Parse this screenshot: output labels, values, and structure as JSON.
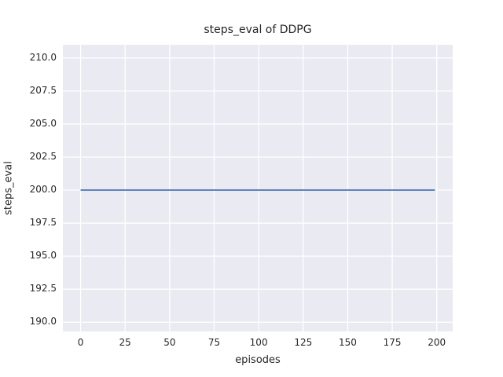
{
  "chart_data": {
    "type": "line",
    "title": "steps_eval of DDPG",
    "xlabel": "episodes",
    "ylabel": "steps_eval",
    "x_ticks": [
      0,
      25,
      50,
      75,
      100,
      125,
      150,
      175,
      200
    ],
    "x_tick_labels": [
      "0",
      "25",
      "50",
      "75",
      "100",
      "125",
      "150",
      "175",
      "200"
    ],
    "y_ticks": [
      190.0,
      192.5,
      195.0,
      197.5,
      200.0,
      202.5,
      205.0,
      207.5,
      210.0
    ],
    "y_tick_labels": [
      "190.0",
      "192.5",
      "195.0",
      "197.5",
      "200.0",
      "202.5",
      "205.0",
      "207.5",
      "210.0"
    ],
    "xlim": [
      -9.95,
      208.95
    ],
    "ylim": [
      189.3,
      211.0
    ],
    "grid": true,
    "legend": false,
    "series": [
      {
        "name": "DDPG",
        "color": "#4C72B0",
        "x": [
          0,
          199
        ],
        "y": [
          200.0,
          200.0
        ],
        "note": "constant value 200 for all 200 episodes"
      }
    ],
    "colors": {
      "axes_background": "#EAEAF2",
      "grid_line": "#FFFFFF",
      "text": "#262626",
      "figure_background": "#FFFFFF"
    }
  }
}
